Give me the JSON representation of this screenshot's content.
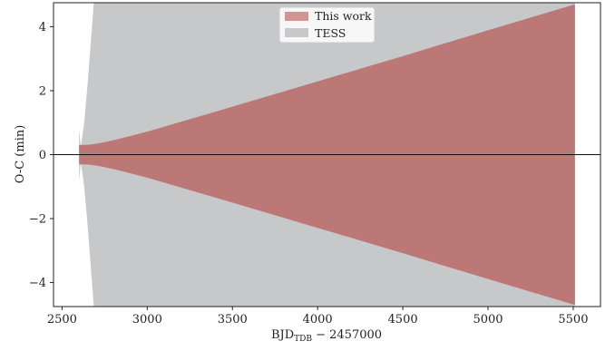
{
  "chart_data": {
    "type": "area",
    "title": "",
    "xlabel": {
      "main": "BJD",
      "subscript": "TDB",
      "suffix": " − 2457000"
    },
    "ylabel": "O-C (min)",
    "xlim": [
      2450,
      5660
    ],
    "ylim": [
      -4.75,
      4.75
    ],
    "grid": false,
    "legend_position": "top-center",
    "x_ticks": [
      2500,
      3000,
      3500,
      4000,
      4500,
      5000,
      5500
    ],
    "y_ticks": [
      -4,
      -2,
      0,
      2,
      4
    ],
    "x_tick_labels": [
      "2500",
      "3000",
      "3500",
      "4000",
      "4500",
      "5000",
      "5500"
    ],
    "y_tick_labels": [
      "−4",
      "−2",
      "0",
      "2",
      "4"
    ],
    "zero_line": true,
    "series": [
      {
        "name": "TESS",
        "color": "#c7c8ca",
        "kind": "band",
        "x": [
          2600,
          2610,
          2620,
          2630,
          2640,
          2650,
          2660,
          2670,
          2680,
          2690,
          5510
        ],
        "upper": [
          0.8,
          0.25,
          0.6,
          1.0,
          1.6,
          2.2,
          2.9,
          3.6,
          4.3,
          5.0,
          5.0
        ],
        "lower": [
          -0.8,
          -0.25,
          -0.6,
          -1.0,
          -1.6,
          -2.2,
          -2.9,
          -3.6,
          -4.3,
          -5.0,
          -5.0
        ]
      },
      {
        "name": "This work",
        "color": "#bc7777",
        "legend_color": "#d49494",
        "kind": "band",
        "x": [
          2600,
          2650,
          2700,
          2750,
          2800,
          2900,
          3000,
          3200,
          3500,
          4000,
          4500,
          5000,
          5510
        ],
        "upper": [
          0.3,
          0.31,
          0.34,
          0.39,
          0.45,
          0.58,
          0.72,
          1.03,
          1.5,
          2.29,
          3.08,
          3.89,
          4.7
        ],
        "lower": [
          -0.3,
          -0.31,
          -0.34,
          -0.39,
          -0.45,
          -0.58,
          -0.72,
          -1.03,
          -1.5,
          -2.29,
          -3.08,
          -3.89,
          -4.7
        ]
      }
    ],
    "legend": [
      {
        "label": "This work",
        "color": "#d49494"
      },
      {
        "label": "TESS",
        "color": "#c7c8ca"
      }
    ]
  }
}
